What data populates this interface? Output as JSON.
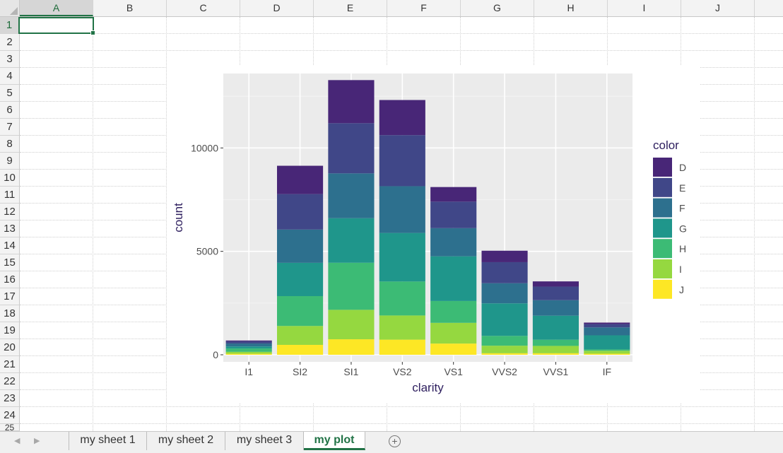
{
  "spreadsheet": {
    "columns": [
      "A",
      "B",
      "C",
      "D",
      "E",
      "F",
      "G",
      "H",
      "I",
      "J"
    ],
    "rows": [
      "1",
      "2",
      "3",
      "4",
      "5",
      "6",
      "7",
      "8",
      "9",
      "10",
      "11",
      "12",
      "13",
      "14",
      "15",
      "16",
      "17",
      "18",
      "19",
      "20",
      "21",
      "22",
      "23",
      "24",
      "25"
    ],
    "selected_cell": {
      "column": "A",
      "row": "1"
    }
  },
  "tabs": {
    "items": [
      {
        "label": "my sheet 1",
        "active": false
      },
      {
        "label": "my sheet 2",
        "active": false
      },
      {
        "label": "my sheet 3",
        "active": false
      },
      {
        "label": "my plot",
        "active": true
      }
    ],
    "prev_icon": "triangle-left-icon",
    "next_icon": "triangle-right-icon",
    "add_icon": "plus-circle-icon",
    "add_glyph": "+"
  },
  "colors": {
    "accent": "#217346",
    "panel": "#ebebeb",
    "axis_text": "#4d4d4d",
    "title_text": "#2d1e5e"
  },
  "chart_data": {
    "type": "bar",
    "stacked": true,
    "title": "",
    "xlabel": "clarity",
    "ylabel": "count",
    "categories": [
      "I1",
      "SI2",
      "SI1",
      "VS2",
      "VS1",
      "VVS2",
      "VVS1",
      "IF"
    ],
    "ylim": [
      0,
      13600
    ],
    "yticks": [
      0,
      5000,
      10000
    ],
    "grid": true,
    "legend": {
      "title": "color",
      "position": "right"
    },
    "series": [
      {
        "name": "J",
        "color": "#fde725",
        "values": [
          50,
          479,
          750,
          731,
          542,
          74,
          74,
          51
        ]
      },
      {
        "name": "I",
        "color": "#95d840",
        "values": [
          92,
          914,
          1424,
          1169,
          1002,
          365,
          355,
          143
        ]
      },
      {
        "name": "H",
        "color": "#3cbb75",
        "values": [
          162,
          1443,
          2275,
          1643,
          1056,
          474,
          299,
          65
        ]
      },
      {
        "name": "G",
        "color": "#1f968b",
        "values": [
          98,
          1610,
          2155,
          2347,
          2160,
          1573,
          1162,
          681
        ]
      },
      {
        "name": "F",
        "color": "#2d708e",
        "values": [
          143,
          1608,
          2168,
          2261,
          1364,
          975,
          750,
          385
        ]
      },
      {
        "name": "E",
        "color": "#404788",
        "values": [
          102,
          1715,
          2426,
          2470,
          1281,
          1017,
          656,
          158
        ]
      },
      {
        "name": "D",
        "color": "#482677",
        "values": [
          42,
          1370,
          2083,
          1697,
          705,
          553,
          252,
          73
        ]
      }
    ]
  }
}
